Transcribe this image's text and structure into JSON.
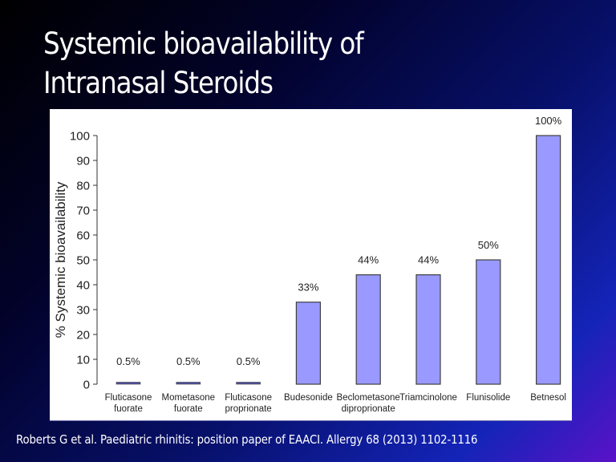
{
  "slide": {
    "title_lines": [
      "Systemic bioavailability of",
      "Intranasal Steroids"
    ],
    "citation": "Roberts G et al. Paediatric rhinitis: position paper of EAACI. Allergy 68 (2013) 1102-1116"
  },
  "colors": {
    "bar_fill": "#9999ff",
    "bar_stroke": "#404040",
    "small_bar_fill": "#5050a0",
    "axis": "#333333",
    "text": "#222222"
  },
  "chart_data": {
    "type": "bar",
    "title": "",
    "xlabel": "",
    "ylabel": "% Systemic bioavailability",
    "ylim": [
      0,
      100
    ],
    "yticks": [
      0,
      10,
      20,
      30,
      40,
      50,
      60,
      70,
      80,
      90,
      100
    ],
    "grid": false,
    "legend": "none",
    "categories": [
      [
        "Fluticasone",
        "fuorate"
      ],
      [
        "Mometasone",
        "fuorate"
      ],
      [
        "Fluticasone",
        "proprionate"
      ],
      [
        "Budesonide"
      ],
      [
        "Beclometasone",
        "diproprionate"
      ],
      [
        "Triamcinolone"
      ],
      [
        "Flunisolide"
      ],
      [
        "Betnesol"
      ]
    ],
    "values": [
      0.5,
      0.5,
      0.5,
      33,
      44,
      44,
      50,
      100
    ],
    "data_labels": [
      "0.5%",
      "0.5%",
      "0.5%",
      "33%",
      "44%",
      "44%",
      "50%",
      "100%"
    ]
  }
}
